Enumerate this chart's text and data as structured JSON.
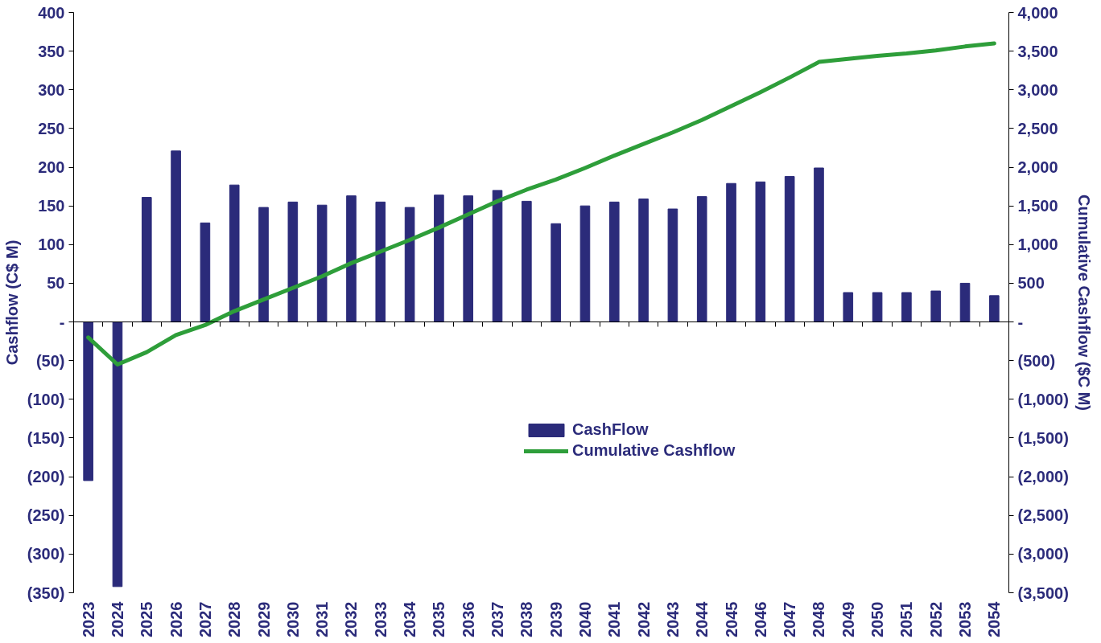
{
  "chart_data": {
    "type": "bar",
    "categories": [
      "2023",
      "2024",
      "2025",
      "2026",
      "2027",
      "2028",
      "2029",
      "2030",
      "2031",
      "2032",
      "2033",
      "2034",
      "2035",
      "2036",
      "2037",
      "2038",
      "2039",
      "2040",
      "2041",
      "2042",
      "2043",
      "2044",
      "2045",
      "2046",
      "2047",
      "2048",
      "2049",
      "2050",
      "2051",
      "2052",
      "2053",
      "2054"
    ],
    "ylabel": "Cashflow (C$ M)",
    "y2label": "Cumulative Cashflow ($C M)",
    "ylim": [
      -350,
      400
    ],
    "yticks": [
      {
        "value": -350,
        "label": "(350)"
      },
      {
        "value": -300,
        "label": "(300)"
      },
      {
        "value": -250,
        "label": "(250)"
      },
      {
        "value": -200,
        "label": "(200)"
      },
      {
        "value": -150,
        "label": "(150)"
      },
      {
        "value": -100,
        "label": "(100)"
      },
      {
        "value": -50,
        "label": "(50)"
      },
      {
        "value": 0,
        "label": "-"
      },
      50,
      100,
      150,
      200,
      250,
      300,
      350,
      400
    ],
    "y2lim": [
      -3500,
      4000
    ],
    "y2ticks": [
      {
        "value": -3500,
        "label": "(3,500)"
      },
      {
        "value": -3000,
        "label": "(3,000)"
      },
      {
        "value": -2500,
        "label": "(2,500)"
      },
      {
        "value": -2000,
        "label": "(2,000)"
      },
      {
        "value": -1500,
        "label": "(1,500)"
      },
      {
        "value": -1000,
        "label": "(1,000)"
      },
      {
        "value": -500,
        "label": "(500)"
      },
      {
        "value": 0,
        "label": "-"
      },
      500,
      {
        "value": 1000,
        "label": "1,000"
      },
      {
        "value": 1500,
        "label": "1,500"
      },
      {
        "value": 2000,
        "label": "2,000"
      },
      {
        "value": 2500,
        "label": "2,500"
      },
      {
        "value": 3000,
        "label": "3,000"
      },
      {
        "value": 3500,
        "label": "3,500"
      },
      {
        "value": 4000,
        "label": "4,000"
      }
    ],
    "legend": "center",
    "series": [
      {
        "name": "CashFlow",
        "color": "#2b2b7a",
        "values": [
          -205,
          -342,
          161,
          221,
          128,
          177,
          148,
          155,
          151,
          163,
          155,
          148,
          164,
          163,
          170,
          156,
          127,
          150,
          155,
          159,
          146,
          162,
          179,
          181,
          188,
          199,
          38,
          38,
          38,
          40,
          50,
          34
        ]
      },
      {
        "name": "Cumulative Cashflow",
        "type": "line",
        "axis": "y2",
        "color": "#2e9e3a",
        "values": [
          -200,
          -550,
          -390,
          -170,
          -40,
          140,
          290,
          440,
          590,
          760,
          910,
          1060,
          1220,
          1390,
          1560,
          1710,
          1840,
          1990,
          2150,
          2300,
          2450,
          2610,
          2790,
          2970,
          3160,
          3360,
          3400,
          3440,
          3470,
          3510,
          3560,
          3600
        ]
      }
    ]
  }
}
